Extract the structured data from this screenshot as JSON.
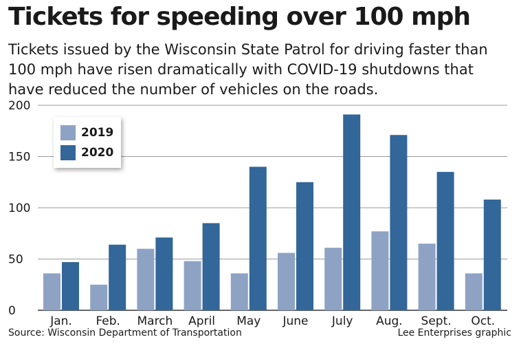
{
  "header": {
    "title": "Tickets for speeding over 100 mph",
    "subtitle": "Tickets issued by the Wisconsin State Patrol for driving faster than 100 mph have risen dramatically with COVID-19 shutdowns that have reduced the number of vehicles on the roads."
  },
  "footer": {
    "source": "Source: Wisconsin Department of Transportation",
    "credit": "Lee Enterprises graphic"
  },
  "colors": {
    "series_2019": "#8ea3c4",
    "series_2020": "#336699",
    "grid": "#9a9a9a"
  },
  "chart_data": {
    "type": "bar",
    "title": "Tickets for speeding over 100 mph",
    "xlabel": "",
    "ylabel": "",
    "ylim": [
      0,
      200
    ],
    "yticks": [
      0,
      50,
      100,
      150,
      200
    ],
    "grid": true,
    "legend_position": "top-left",
    "categories": [
      "Jan.",
      "Feb.",
      "March",
      "April",
      "May",
      "June",
      "July",
      "Aug.",
      "Sept.",
      "Oct."
    ],
    "series": [
      {
        "name": "2019",
        "values": [
          36,
          25,
          60,
          48,
          36,
          56,
          61,
          77,
          65,
          36
        ]
      },
      {
        "name": "2020",
        "values": [
          47,
          64,
          71,
          85,
          140,
          125,
          191,
          171,
          135,
          108
        ]
      }
    ]
  }
}
